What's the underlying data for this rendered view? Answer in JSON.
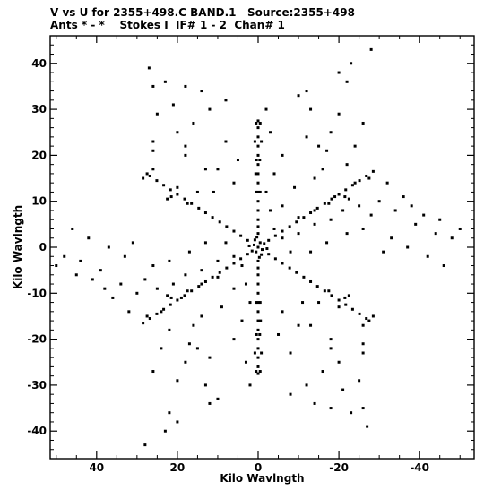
{
  "header": {
    "line1": "V vs U for 2355+498.C BAND.1   Source:2355+498",
    "line2": "Ants * - *    Stokes I  IF# 1 - 2  Chan# 1"
  },
  "chart_data": {
    "type": "scatter",
    "title": "V vs U for 2355+498.C BAND.1   Source:2355+498",
    "subtitle": "Ants * - *    Stokes I  IF# 1 - 2  Chan# 1",
    "xlabel": "Kilo Wavlngth",
    "ylabel": "Kilo Wavlngth",
    "xlim": [
      51.5,
      -53.5
    ],
    "ylim": [
      -46,
      46
    ],
    "x_reversed": true,
    "x_ticks": [
      40,
      20,
      0,
      -20,
      -40
    ],
    "x_tick_labels": [
      "40",
      "20",
      "0",
      "-20",
      "-40"
    ],
    "y_ticks": [
      40,
      30,
      20,
      10,
      0,
      -10,
      -20,
      -30,
      -40
    ],
    "y_tick_labels": [
      "40",
      "30",
      "20",
      "10",
      "0",
      "-10",
      "-20",
      "-30",
      "-40"
    ],
    "grid": false,
    "marker_color": "#000000",
    "series": [
      {
        "points": [
          [
            0,
            0
          ],
          [
            -0.5,
            1
          ],
          [
            0.5,
            -1
          ],
          [
            1,
            0.5
          ],
          [
            -1,
            -0.5
          ],
          [
            0.8,
            1.6
          ],
          [
            -0.8,
            -1.6
          ],
          [
            1.5,
            -0.8
          ],
          [
            -1.5,
            0.8
          ],
          [
            0.3,
            2.2
          ],
          [
            -0.3,
            -2.2
          ],
          [
            2.2,
            0.3
          ],
          [
            -2.2,
            -0.3
          ],
          [
            0,
            3
          ],
          [
            0,
            -3
          ],
          [
            0,
            4.5
          ],
          [
            0,
            -4.5
          ],
          [
            0,
            6
          ],
          [
            0,
            -6
          ],
          [
            0,
            8
          ],
          [
            0,
            -8
          ],
          [
            0,
            10
          ],
          [
            0,
            -10
          ],
          [
            0,
            12
          ],
          [
            0,
            -12
          ],
          [
            0,
            14
          ],
          [
            0,
            -14
          ],
          [
            0,
            16
          ],
          [
            0,
            -16
          ],
          [
            0,
            18
          ],
          [
            0,
            -18
          ],
          [
            0,
            20
          ],
          [
            0,
            -20
          ],
          [
            0,
            22
          ],
          [
            0,
            -22
          ],
          [
            0,
            24
          ],
          [
            0,
            -24
          ],
          [
            0,
            26
          ],
          [
            0,
            -26
          ],
          [
            0,
            27.5
          ],
          [
            0,
            -27.5
          ],
          [
            0.5,
            27
          ],
          [
            -0.5,
            -27
          ],
          [
            -0.5,
            27
          ],
          [
            0.5,
            -27
          ],
          [
            0.8,
            23
          ],
          [
            -0.8,
            -23
          ],
          [
            -0.8,
            23
          ],
          [
            0.8,
            -23
          ],
          [
            0.4,
            19
          ],
          [
            -0.4,
            -19
          ],
          [
            -0.4,
            19
          ],
          [
            0.4,
            -19
          ],
          [
            0.6,
            16
          ],
          [
            -0.6,
            -16
          ],
          [
            0.5,
            12
          ],
          [
            -0.5,
            -12
          ],
          [
            -0.5,
            12
          ],
          [
            0.5,
            -12
          ],
          [
            2.6,
            1.5
          ],
          [
            -2.6,
            -1.5
          ],
          [
            4.3,
            2.5
          ],
          [
            -4.3,
            -2.5
          ],
          [
            6,
            3.5
          ],
          [
            -6,
            -3.5
          ],
          [
            7.8,
            4.5
          ],
          [
            -7.8,
            -4.5
          ],
          [
            9.5,
            5.5
          ],
          [
            -9.5,
            -5.5
          ],
          [
            11.3,
            6.5
          ],
          [
            -11.3,
            -6.5
          ],
          [
            13,
            7.5
          ],
          [
            -13,
            -7.5
          ],
          [
            14.7,
            8.5
          ],
          [
            -14.7,
            -8.5
          ],
          [
            16.5,
            9.5
          ],
          [
            -16.5,
            -9.5
          ],
          [
            18.2,
            10.5
          ],
          [
            -18.2,
            -10.5
          ],
          [
            20,
            11.5
          ],
          [
            -20,
            -11.5
          ],
          [
            21.7,
            12.5
          ],
          [
            -21.7,
            -12.5
          ],
          [
            23.4,
            13.5
          ],
          [
            -23.4,
            -13.5
          ],
          [
            25.1,
            14.5
          ],
          [
            -25.1,
            -14.5
          ],
          [
            26.8,
            15.5
          ],
          [
            -26.8,
            -15.5
          ],
          [
            27.5,
            16
          ],
          [
            -27.5,
            -16
          ],
          [
            28.5,
            15
          ],
          [
            -28.5,
            -15
          ],
          [
            22.5,
            10.5
          ],
          [
            -22.5,
            -10.5
          ],
          [
            21.5,
            11
          ],
          [
            -21.5,
            -11
          ],
          [
            17.5,
            9.5
          ],
          [
            -17.5,
            -9.5
          ],
          [
            -2.6,
            1.5
          ],
          [
            2.6,
            -1.5
          ],
          [
            -4.3,
            2.5
          ],
          [
            4.3,
            -2.5
          ],
          [
            -6,
            3.5
          ],
          [
            6,
            -3.5
          ],
          [
            -7.8,
            4.5
          ],
          [
            7.8,
            -4.5
          ],
          [
            -9.5,
            5.5
          ],
          [
            9.5,
            -5.5
          ],
          [
            -11.3,
            6.5
          ],
          [
            11.3,
            -6.5
          ],
          [
            -13,
            7.5
          ],
          [
            13,
            -7.5
          ],
          [
            -14.7,
            8.5
          ],
          [
            14.7,
            -8.5
          ],
          [
            -16.5,
            9.5
          ],
          [
            16.5,
            -9.5
          ],
          [
            -18.2,
            10.5
          ],
          [
            18.2,
            -10.5
          ],
          [
            -20,
            11.5
          ],
          [
            20,
            -11.5
          ],
          [
            -21.7,
            12.5
          ],
          [
            21.7,
            -12.5
          ],
          [
            -23.4,
            13.5
          ],
          [
            23.4,
            -13.5
          ],
          [
            -25.1,
            14.5
          ],
          [
            25.1,
            -14.5
          ],
          [
            -26.8,
            15.5
          ],
          [
            26.8,
            -15.5
          ],
          [
            -28.5,
            16.5
          ],
          [
            28.5,
            -16.5
          ],
          [
            -27.5,
            15
          ],
          [
            27.5,
            -15
          ],
          [
            -22.5,
            10.5
          ],
          [
            22.5,
            -10.5
          ],
          [
            -21.5,
            11
          ],
          [
            21.5,
            -11
          ],
          [
            -17.5,
            9.5
          ],
          [
            17.5,
            -9.5
          ],
          [
            -24,
            14
          ],
          [
            24,
            -14
          ],
          [
            -19,
            11
          ],
          [
            19,
            -11
          ],
          [
            -14,
            8
          ],
          [
            14,
            -8
          ],
          [
            -10,
            6.5
          ],
          [
            10,
            -6.5
          ],
          [
            27,
            39
          ],
          [
            -27,
            -39
          ],
          [
            26,
            35
          ],
          [
            -26,
            -35
          ],
          [
            23,
            36
          ],
          [
            -23,
            -36
          ],
          [
            18,
            35
          ],
          [
            -18,
            -35
          ],
          [
            14,
            34
          ],
          [
            -14,
            -34
          ],
          [
            8,
            32
          ],
          [
            -8,
            -32
          ],
          [
            21,
            31
          ],
          [
            -21,
            -31
          ],
          [
            12,
            30
          ],
          [
            -12,
            -30
          ],
          [
            16,
            27
          ],
          [
            -16,
            -27
          ],
          [
            20,
            25
          ],
          [
            -20,
            -25
          ],
          [
            26,
            23
          ],
          [
            -26,
            -23
          ],
          [
            18,
            20
          ],
          [
            -18,
            -20
          ],
          [
            10,
            17
          ],
          [
            -10,
            -17
          ],
          [
            13,
            17
          ],
          [
            -13,
            -17
          ],
          [
            26,
            17
          ],
          [
            -26,
            -17
          ],
          [
            26,
            21
          ],
          [
            -26,
            -21
          ],
          [
            25,
            29
          ],
          [
            -25,
            -29
          ],
          [
            18,
            22
          ],
          [
            -18,
            -22
          ],
          [
            6,
            14
          ],
          [
            -6,
            -14
          ],
          [
            11,
            12
          ],
          [
            -11,
            -12
          ],
          [
            15,
            12
          ],
          [
            -15,
            -12
          ],
          [
            20,
            13
          ],
          [
            -20,
            -13
          ],
          [
            5,
            19
          ],
          [
            -5,
            -19
          ],
          [
            8,
            23
          ],
          [
            -8,
            -23
          ],
          [
            -10,
            33
          ],
          [
            10,
            -33
          ],
          [
            -12,
            34
          ],
          [
            12,
            -34
          ],
          [
            -13,
            30
          ],
          [
            13,
            -30
          ],
          [
            -15,
            22
          ],
          [
            15,
            -22
          ],
          [
            -12,
            24
          ],
          [
            12,
            -24
          ],
          [
            -18,
            25
          ],
          [
            18,
            -25
          ],
          [
            -20,
            38
          ],
          [
            20,
            -38
          ],
          [
            -23,
            40
          ],
          [
            23,
            -40
          ],
          [
            -28,
            43
          ],
          [
            28,
            -43
          ],
          [
            -22,
            36
          ],
          [
            22,
            -36
          ],
          [
            -20,
            29
          ],
          [
            20,
            -29
          ],
          [
            -17,
            21
          ],
          [
            17,
            -21
          ],
          [
            -16,
            17
          ],
          [
            16,
            -17
          ],
          [
            -22,
            18
          ],
          [
            22,
            -18
          ],
          [
            -24,
            22
          ],
          [
            24,
            -22
          ],
          [
            -26,
            27
          ],
          [
            26,
            -27
          ],
          [
            -14,
            15
          ],
          [
            14,
            -15
          ],
          [
            -9,
            13
          ],
          [
            9,
            -13
          ],
          [
            -32,
            14
          ],
          [
            32,
            -14
          ],
          [
            -36,
            11
          ],
          [
            36,
            -11
          ],
          [
            -38,
            9
          ],
          [
            38,
            -9
          ],
          [
            -41,
            7
          ],
          [
            41,
            -7
          ],
          [
            -45,
            6
          ],
          [
            45,
            -6
          ],
          [
            -50,
            4
          ],
          [
            50,
            -4
          ],
          [
            -30,
            10
          ],
          [
            30,
            -10
          ],
          [
            -34,
            8
          ],
          [
            34,
            -8
          ],
          [
            -39,
            5
          ],
          [
            39,
            -5
          ],
          [
            -44,
            3
          ],
          [
            44,
            -3
          ],
          [
            -48,
            2
          ],
          [
            48,
            -2
          ],
          [
            -28,
            7
          ],
          [
            28,
            -7
          ],
          [
            -33,
            2
          ],
          [
            33,
            -2
          ],
          [
            -37,
            0
          ],
          [
            37,
            0
          ],
          [
            -42,
            -2
          ],
          [
            42,
            2
          ],
          [
            -46,
            -4
          ],
          [
            46,
            4
          ],
          [
            -31,
            -1
          ],
          [
            31,
            1
          ],
          [
            -26,
            4
          ],
          [
            26,
            -4
          ],
          [
            -18,
            6
          ],
          [
            18,
            -6
          ],
          [
            -14,
            5
          ],
          [
            14,
            -5
          ],
          [
            -10,
            3
          ],
          [
            10,
            -3
          ],
          [
            -6,
            2
          ],
          [
            6,
            -2
          ],
          [
            -21,
            8
          ],
          [
            21,
            -8
          ],
          [
            -25,
            9
          ],
          [
            25,
            -9
          ],
          [
            -13,
            -1
          ],
          [
            13,
            1
          ],
          [
            -17,
            1
          ],
          [
            17,
            -1
          ],
          [
            -22,
            3
          ],
          [
            22,
            -3
          ],
          [
            -8,
            -1
          ],
          [
            8,
            1
          ],
          [
            -4,
            4
          ],
          [
            4,
            -4
          ],
          [
            -6,
            9
          ],
          [
            6,
            -9
          ],
          [
            -3,
            8
          ],
          [
            3,
            -8
          ],
          [
            -2,
            12
          ],
          [
            2,
            -12
          ],
          [
            -4,
            16
          ],
          [
            4,
            -16
          ],
          [
            -6,
            20
          ],
          [
            6,
            -20
          ],
          [
            -3,
            25
          ],
          [
            3,
            -25
          ],
          [
            -2,
            30
          ],
          [
            2,
            -30
          ]
        ]
      }
    ]
  }
}
